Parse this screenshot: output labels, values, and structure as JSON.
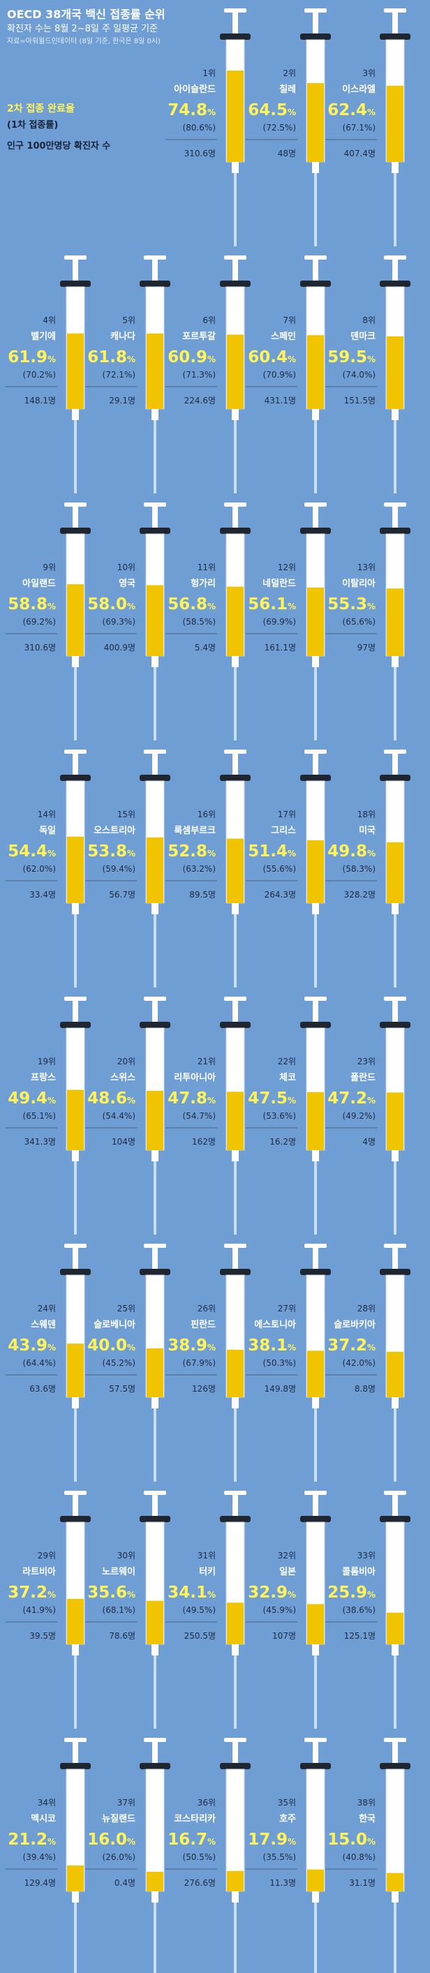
{
  "header": {
    "title": "OECD 38개국 백신 접종률 순위",
    "subtitle": "확진자 수는 8월 2~8일 주 일평균 기준",
    "source": "자료=아워월드인데이터 (8일 기준, 한국은 8일 0시)"
  },
  "legend": {
    "full_label": "2차 접종 완료율",
    "first_label": "(1차 접종률)",
    "cases_label": "인구 100만명당 확진자 수"
  },
  "chart_data": {
    "type": "bar",
    "colors": {
      "liquid": "#f0c400",
      "barrel": "#ffffff",
      "needle": "#c8dff2",
      "text_value": "#fff35a"
    },
    "units": {
      "rank_suffix": "위",
      "pct_suffix": "%",
      "cases_suffix": "명"
    },
    "items": [
      {
        "rank": 1,
        "country": "아이슬란드",
        "full": 74.8,
        "first": 80.6,
        "cases": 310.6
      },
      {
        "rank": 2,
        "country": "칠레",
        "full": 64.5,
        "first": 72.5,
        "cases": 48.0
      },
      {
        "rank": 3,
        "country": "이스라엘",
        "full": 62.4,
        "first": 67.1,
        "cases": 407.4
      },
      {
        "rank": 4,
        "country": "벨기에",
        "full": 61.9,
        "first": 70.2,
        "cases": 148.1
      },
      {
        "rank": 5,
        "country": "캐나다",
        "full": 61.8,
        "first": 72.1,
        "cases": 29.1
      },
      {
        "rank": 6,
        "country": "포르투갈",
        "full": 60.9,
        "first": 71.3,
        "cases": 224.6
      },
      {
        "rank": 7,
        "country": "스페인",
        "full": 60.4,
        "first": 70.9,
        "cases": 431.1
      },
      {
        "rank": 8,
        "country": "덴마크",
        "full": 59.5,
        "first": 74.0,
        "cases": 151.5
      },
      {
        "rank": 9,
        "country": "아일랜드",
        "full": 58.8,
        "first": 69.2,
        "cases": 310.6
      },
      {
        "rank": 10,
        "country": "영국",
        "full": 58.0,
        "first": 69.3,
        "cases": 400.9
      },
      {
        "rank": 11,
        "country": "헝가리",
        "full": 56.8,
        "first": 58.5,
        "cases": 5.4
      },
      {
        "rank": 12,
        "country": "네덜란드",
        "full": 56.1,
        "first": 69.9,
        "cases": 161.1
      },
      {
        "rank": 13,
        "country": "이탈리아",
        "full": 55.3,
        "first": 65.6,
        "cases": 97.0
      },
      {
        "rank": 14,
        "country": "독일",
        "full": 54.4,
        "first": 62.0,
        "cases": 33.4
      },
      {
        "rank": 15,
        "country": "오스트리아",
        "full": 53.8,
        "first": 59.4,
        "cases": 56.7
      },
      {
        "rank": 16,
        "country": "룩셈부르크",
        "full": 52.8,
        "first": 63.2,
        "cases": 89.5
      },
      {
        "rank": 17,
        "country": "그리스",
        "full": 51.4,
        "first": 55.6,
        "cases": 264.3
      },
      {
        "rank": 18,
        "country": "미국",
        "full": 49.8,
        "first": 58.3,
        "cases": 328.2
      },
      {
        "rank": 19,
        "country": "프랑스",
        "full": 49.4,
        "first": 65.1,
        "cases": 341.3
      },
      {
        "rank": 20,
        "country": "스위스",
        "full": 48.6,
        "first": 54.4,
        "cases": 104.0
      },
      {
        "rank": 21,
        "country": "리투아니아",
        "full": 47.8,
        "first": 54.7,
        "cases": 162
      },
      {
        "rank": 22,
        "country": "체코",
        "full": 47.5,
        "first": 53.6,
        "cases": 16.2
      },
      {
        "rank": 23,
        "country": "폴란드",
        "full": 47.2,
        "first": 49.2,
        "cases": 4.0
      },
      {
        "rank": 24,
        "country": "스웨덴",
        "full": 43.9,
        "first": 64.4,
        "cases": 63.6
      },
      {
        "rank": 25,
        "country": "슬로베니아",
        "full": 40.0,
        "first": 45.2,
        "cases": 57.5
      },
      {
        "rank": 26,
        "country": "핀란드",
        "full": 38.9,
        "first": 67.9,
        "cases": 126.0
      },
      {
        "rank": 27,
        "country": "에스토니아",
        "full": 38.1,
        "first": 50.3,
        "cases": 149.8
      },
      {
        "rank": 28,
        "country": "슬로바키아",
        "full": 37.2,
        "first": 42.0,
        "cases": 8.8
      },
      {
        "rank": 29,
        "country": "라트비아",
        "full": 37.2,
        "first": 41.9,
        "cases": 39.5
      },
      {
        "rank": 30,
        "country": "노르웨이",
        "full": 35.6,
        "first": 68.1,
        "cases": 78.6
      },
      {
        "rank": 31,
        "country": "터키",
        "full": 34.1,
        "first": 49.5,
        "cases": 250.5
      },
      {
        "rank": 32,
        "country": "일본",
        "full": 32.9,
        "first": 45.9,
        "cases": 107
      },
      {
        "rank": 33,
        "country": "콜롬비아",
        "full": 25.9,
        "first": 38.6,
        "cases": 125.1
      },
      {
        "rank": 34,
        "country": "멕시코",
        "full": 21.2,
        "first": 39.4,
        "cases": 129.4
      },
      {
        "rank": 37,
        "country": "뉴질랜드",
        "full": 16.0,
        "first": 26.0,
        "cases": 0.4
      },
      {
        "rank": 36,
        "country": "코스타리카",
        "full": 16.7,
        "first": 50.5,
        "cases": 276.6
      },
      {
        "rank": 35,
        "country": "호주",
        "full": 17.9,
        "first": 35.5,
        "cases": 11.3
      },
      {
        "rank": 38,
        "country": "한국",
        "full": 15.0,
        "first": 40.8,
        "cases": 31.1
      }
    ]
  }
}
